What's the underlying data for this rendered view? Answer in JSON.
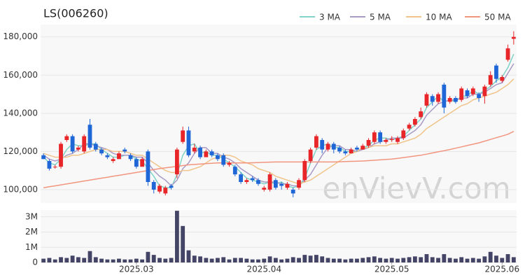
{
  "chart_data": {
    "type": "candlestick",
    "title": "LS(006260)",
    "watermark": "enVievV.com",
    "categories": [
      null,
      null,
      null,
      null,
      null,
      null,
      null,
      null,
      null,
      null,
      null,
      null,
      null,
      null,
      null,
      null,
      "2025.03",
      null,
      null,
      null,
      null,
      null,
      null,
      null,
      null,
      null,
      null,
      null,
      null,
      null,
      null,
      null,
      null,
      null,
      null,
      null,
      null,
      null,
      "2025.04",
      null,
      null,
      null,
      null,
      null,
      null,
      null,
      null,
      null,
      null,
      null,
      null,
      null,
      null,
      null,
      null,
      null,
      null,
      null,
      null,
      null,
      "2025.05",
      null,
      null,
      null,
      null,
      null,
      null,
      null,
      null,
      null,
      null,
      null,
      null,
      null,
      null,
      null,
      null,
      null,
      null,
      "2025.06",
      null,
      null
    ],
    "open": [
      118000,
      115000,
      112000,
      112000,
      126000,
      128000,
      121000,
      120000,
      134000,
      124000,
      121000,
      118000,
      115000,
      116000,
      121000,
      118000,
      116000,
      112000,
      120000,
      104000,
      99000,
      98000,
      102000,
      108000,
      125000,
      131000,
      120000,
      122000,
      117000,
      120000,
      118000,
      118000,
      113000,
      112000,
      108000,
      104000,
      106000,
      105000,
      100000,
      100000,
      105000,
      103000,
      101000,
      100000,
      101000,
      105000,
      115000,
      122000,
      126000,
      121000,
      124000,
      122000,
      120000,
      119000,
      122000,
      121000,
      123000,
      125000,
      130000,
      125000,
      126000,
      125000,
      127000,
      132000,
      134000,
      138000,
      144000,
      149000,
      146000,
      155000,
      146000,
      148000,
      147000,
      152000,
      150000,
      150000,
      149000,
      155000,
      165000,
      157000,
      168000,
      179000
    ],
    "high": [
      119000,
      116000,
      113000,
      125000,
      129000,
      129000,
      123000,
      129000,
      137000,
      125000,
      122000,
      119000,
      117000,
      120000,
      122000,
      119000,
      117000,
      117000,
      121000,
      105000,
      103000,
      102000,
      103000,
      122000,
      133000,
      133000,
      124000,
      123000,
      121000,
      121000,
      119000,
      119000,
      115000,
      113000,
      109000,
      106000,
      107000,
      106000,
      102000,
      109000,
      106000,
      104000,
      104000,
      101000,
      106000,
      116000,
      122000,
      129000,
      127000,
      125000,
      125000,
      123000,
      121000,
      122000,
      123000,
      124000,
      127000,
      131000,
      131000,
      127000,
      128000,
      128000,
      132000,
      135000,
      138000,
      143000,
      151000,
      150000,
      151000,
      156000,
      149000,
      149000,
      154000,
      153000,
      154000,
      151000,
      155000,
      162000,
      166000,
      160000,
      176000,
      183000
    ],
    "low": [
      116000,
      110000,
      111000,
      111000,
      125000,
      119000,
      120000,
      119000,
      121000,
      120000,
      118000,
      116000,
      114000,
      116000,
      119000,
      115000,
      111000,
      112000,
      102000,
      98000,
      98000,
      97000,
      100000,
      106000,
      124000,
      117000,
      119000,
      116000,
      117000,
      117000,
      115000,
      112000,
      112000,
      107000,
      103000,
      103000,
      104000,
      102000,
      99000,
      99000,
      100000,
      100000,
      100000,
      96000,
      100000,
      104000,
      114000,
      121000,
      119000,
      120000,
      119000,
      119000,
      118000,
      119000,
      120000,
      121000,
      122000,
      124000,
      124000,
      124000,
      125000,
      124000,
      126000,
      131000,
      133000,
      137000,
      143000,
      144000,
      145000,
      140000,
      145000,
      145000,
      146000,
      148000,
      149000,
      146000,
      145000,
      154000,
      156000,
      156000,
      167000,
      176000
    ],
    "close": [
      116000,
      111000,
      112000,
      124000,
      128000,
      120000,
      122000,
      128000,
      122000,
      121000,
      119000,
      117000,
      116000,
      119000,
      120000,
      116000,
      112000,
      116000,
      104000,
      100000,
      102000,
      101000,
      101000,
      121000,
      131000,
      118000,
      122000,
      117000,
      120000,
      118000,
      116000,
      113000,
      114000,
      108000,
      104000,
      105000,
      105000,
      103000,
      101000,
      108000,
      101000,
      102000,
      103000,
      98000,
      105000,
      115000,
      121000,
      128000,
      121000,
      124000,
      121000,
      120000,
      119000,
      121000,
      121000,
      123000,
      126000,
      130000,
      125000,
      126000,
      126500,
      127000,
      131000,
      134000,
      137000,
      141000,
      150000,
      146000,
      150000,
      143000,
      148000,
      146000,
      153000,
      149000,
      153000,
      148000,
      154000,
      160000,
      158000,
      159000,
      174000,
      180000
    ],
    "up_color": "#e8262a",
    "down_color": "#1f66d6",
    "ylim": [
      93000,
      186500
    ],
    "yticks": [
      {
        "value": 100000,
        "label": "100,000"
      },
      {
        "value": 120000,
        "label": "120,000"
      },
      {
        "value": 140000,
        "label": "140,000"
      },
      {
        "value": 160000,
        "label": "160,000"
      },
      {
        "value": 180000,
        "label": "180,000"
      }
    ],
    "grid": true,
    "legend": "top-right",
    "series": [
      {
        "name": "3 MA",
        "color": "#7fd3c8",
        "values": [
          117000,
          114000,
          113000,
          116000,
          121000,
          124000,
          123000,
          123000,
          124000,
          124000,
          121000,
          119000,
          117000,
          117000,
          118000,
          118000,
          116000,
          115000,
          111000,
          107000,
          102000,
          101000,
          101000,
          108000,
          118000,
          123000,
          124000,
          119000,
          120000,
          118000,
          118000,
          116000,
          114000,
          112000,
          109000,
          106000,
          105000,
          104000,
          103000,
          104000,
          103000,
          104000,
          102000,
          101000,
          102000,
          106000,
          114000,
          121000,
          123000,
          124000,
          122000,
          122000,
          120000,
          120000,
          120000,
          122000,
          123000,
          126000,
          127000,
          127000,
          126000,
          127000,
          128000,
          131000,
          134000,
          137000,
          143000,
          146000,
          149000,
          146000,
          147000,
          146000,
          149000,
          149000,
          152000,
          150000,
          152000,
          154000,
          157000,
          159000,
          164000,
          171000
        ]
      },
      {
        "name": "5 MA",
        "color": "#a99ac6",
        "values": [
          118000,
          116000,
          115000,
          116000,
          118000,
          119000,
          121000,
          124000,
          124000,
          123000,
          122000,
          121000,
          119000,
          118000,
          118000,
          118000,
          117000,
          117000,
          114000,
          110000,
          107000,
          105000,
          102000,
          105000,
          111000,
          114000,
          119000,
          122000,
          122000,
          119000,
          119000,
          117000,
          116000,
          114000,
          111000,
          109000,
          107000,
          105000,
          104000,
          104000,
          104000,
          103000,
          103000,
          102000,
          102000,
          105000,
          108000,
          113000,
          118000,
          122000,
          123000,
          123000,
          121000,
          121000,
          120000,
          121000,
          122000,
          124000,
          125000,
          126000,
          127000,
          127000,
          127000,
          129000,
          131000,
          134000,
          139000,
          142000,
          145000,
          146000,
          147000,
          147000,
          148000,
          148000,
          150000,
          150000,
          151000,
          153000,
          155000,
          156000,
          161000,
          166000
        ]
      },
      {
        "name": "10 MA",
        "color": "#f0c48a",
        "values": [
          119000,
          118000,
          117000,
          117000,
          117000,
          118000,
          118000,
          119000,
          120000,
          121000,
          121000,
          121000,
          120000,
          120000,
          120000,
          119000,
          118000,
          118000,
          116000,
          114000,
          112000,
          110000,
          109000,
          109000,
          110000,
          110000,
          111000,
          112000,
          114000,
          116000,
          117000,
          118000,
          118000,
          117000,
          115000,
          114000,
          113000,
          111000,
          110000,
          109000,
          107000,
          106000,
          105000,
          104000,
          103000,
          104000,
          105000,
          107000,
          109000,
          111000,
          113000,
          115000,
          117000,
          119000,
          120000,
          122000,
          122000,
          123000,
          123000,
          123000,
          124000,
          124000,
          125000,
          126000,
          127000,
          129000,
          132000,
          134000,
          136000,
          138000,
          140000,
          142000,
          144000,
          145000,
          147000,
          148000,
          149000,
          150000,
          151000,
          153000,
          155000,
          158000
        ]
      },
      {
        "name": "50 MA",
        "color": "#f2957f",
        "values": [
          101000,
          101500,
          102000,
          102500,
          103000,
          103500,
          104000,
          104500,
          105000,
          105500,
          106000,
          106500,
          107000,
          107500,
          108000,
          108500,
          109000,
          109500,
          110000,
          110500,
          111000,
          111400,
          111800,
          112200,
          112600,
          113000,
          113200,
          113400,
          113600,
          113800,
          114000,
          114000,
          114000,
          114000,
          114000,
          114000,
          114100,
          114200,
          114300,
          114400,
          114500,
          114500,
          114500,
          114500,
          114500,
          114500,
          114500,
          114500,
          114500,
          114500,
          114500,
          114600,
          114700,
          114800,
          114900,
          115000,
          115200,
          115400,
          115600,
          115800,
          116000,
          116400,
          116800,
          117200,
          117600,
          118000,
          118600,
          119200,
          119800,
          120400,
          121000,
          121700,
          122400,
          123100,
          123800,
          124500,
          125400,
          126300,
          127200,
          128100,
          129000,
          130500
        ]
      }
    ],
    "volume": {
      "color": "#444466",
      "values": [
        250000,
        300000,
        200000,
        350000,
        300000,
        450000,
        350000,
        300000,
        750000,
        350000,
        250000,
        200000,
        200000,
        250000,
        200000,
        200000,
        250000,
        200000,
        700000,
        500000,
        300000,
        250000,
        300000,
        3400000,
        2400000,
        800000,
        450000,
        400000,
        300000,
        250000,
        300000,
        350000,
        200000,
        300000,
        300000,
        250000,
        200000,
        200000,
        250000,
        400000,
        300000,
        200000,
        250000,
        350000,
        300000,
        500000,
        450000,
        500000,
        400000,
        300000,
        250000,
        250000,
        200000,
        250000,
        250000,
        300000,
        350000,
        400000,
        300000,
        250000,
        300000,
        250000,
        300000,
        350000,
        400000,
        350000,
        550000,
        350000,
        300000,
        550000,
        300000,
        250000,
        350000,
        250000,
        300000,
        250000,
        400000,
        700000,
        450000,
        300000,
        550000,
        350000
      ],
      "ylim": [
        0,
        3450000
      ],
      "yticks": [
        0,
        {
          "value": 1000000,
          "label": "1M"
        },
        {
          "value": 2000000,
          "label": "2M"
        },
        {
          "value": 3000000,
          "label": "3M"
        }
      ]
    }
  }
}
